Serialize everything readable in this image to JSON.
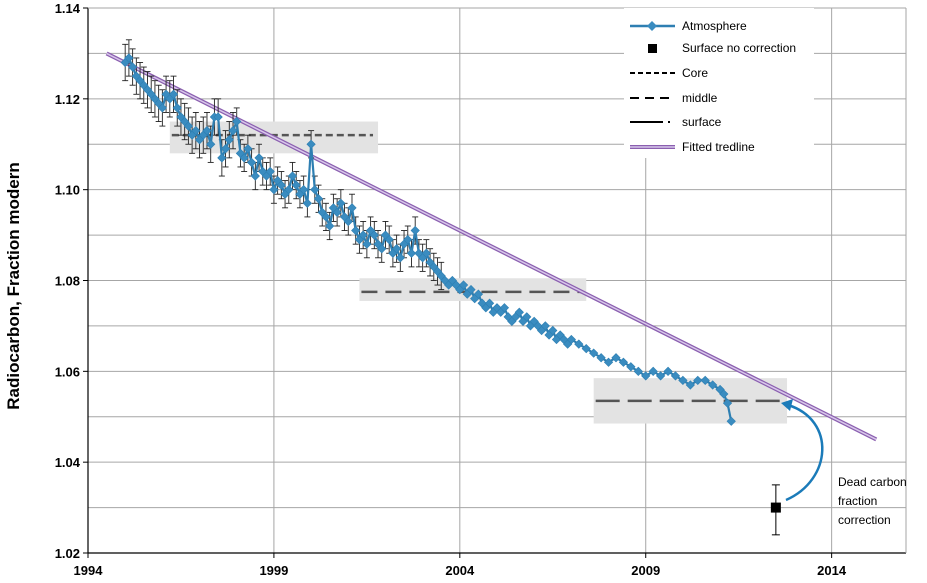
{
  "chart_data": {
    "type": "line",
    "title": "",
    "xlabel": "",
    "ylabel": "Radiocarbon, Fraction modern",
    "xlim": [
      1994,
      2016
    ],
    "ylim": [
      1.02,
      1.14
    ],
    "x_ticks": [
      "1994",
      "1999",
      "2004",
      "2009",
      "2014"
    ],
    "x_tick_values": [
      1994,
      1999,
      2004,
      2009,
      2014
    ],
    "y_ticks": [
      "1.02",
      "1.04",
      "1.06",
      "1.08",
      "1.10",
      "1.12",
      "1.14"
    ],
    "y_tick_values": [
      1.02,
      1.04,
      1.06,
      1.08,
      1.1,
      1.12,
      1.14
    ],
    "x_grid_values": [
      1994,
      1999,
      2004,
      2009,
      2014
    ],
    "y_grid_values": [
      1.03,
      1.04,
      1.05,
      1.06,
      1.07,
      1.08,
      1.09,
      1.1,
      1.11,
      1.12,
      1.13,
      1.14
    ],
    "grid": true,
    "legend_position": "top-right",
    "legend": [
      "Atmosphere",
      "Surface no correction",
      "Core",
      "middle",
      "surface",
      "Fitted tredline"
    ],
    "colors": {
      "atmosphere": "#2e7fb2",
      "atmosphere_marker": "#3a8cc0",
      "trend_outer": "#8b5fb0",
      "trend_inner": "#d8c8ea",
      "band": "#e3e3e3",
      "dashed": "#555555",
      "arrow": "#1b7bb9",
      "grid": "#a6a6a6"
    },
    "series": [
      {
        "name": "Atmosphere",
        "x": [
          1995.0,
          1995.1,
          1995.2,
          1995.3,
          1995.4,
          1995.5,
          1995.6,
          1995.7,
          1995.8,
          1995.9,
          1996.0,
          1996.1,
          1996.2,
          1996.3,
          1996.4,
          1996.5,
          1996.6,
          1996.7,
          1996.8,
          1996.9,
          1997.0,
          1997.1,
          1997.2,
          1997.3,
          1997.4,
          1997.5,
          1997.6,
          1997.7,
          1997.8,
          1997.9,
          1998.0,
          1998.1,
          1998.2,
          1998.3,
          1998.4,
          1998.5,
          1998.6,
          1998.7,
          1998.8,
          1998.9,
          1999.0,
          1999.1,
          1999.2,
          1999.3,
          1999.4,
          1999.5,
          1999.6,
          1999.7,
          1999.8,
          1999.9,
          2000.0,
          2000.1,
          2000.2,
          2000.3,
          2000.4,
          2000.5,
          2000.6,
          2000.7,
          2000.8,
          2000.9,
          2001.0,
          2001.1,
          2001.2,
          2001.3,
          2001.4,
          2001.5,
          2001.6,
          2001.7,
          2001.8,
          2001.9,
          2002.0,
          2002.1,
          2002.2,
          2002.3,
          2002.4,
          2002.5,
          2002.6,
          2002.7,
          2002.8,
          2002.9,
          2003.0,
          2003.1,
          2003.2,
          2003.3,
          2003.4,
          2003.5,
          2003.6,
          2003.7,
          2003.8,
          2003.9,
          2004.0,
          2004.1,
          2004.2,
          2004.3,
          2004.4,
          2004.5,
          2004.6,
          2004.7,
          2004.8,
          2004.9,
          2005.0,
          2005.1,
          2005.2,
          2005.3,
          2005.4,
          2005.5,
          2005.6,
          2005.7,
          2005.8,
          2005.9,
          2006.0,
          2006.1,
          2006.2,
          2006.3,
          2006.4,
          2006.5,
          2006.6,
          2006.7,
          2006.8,
          2006.9,
          2007.0,
          2007.2,
          2007.4,
          2007.6,
          2007.8,
          2008.0,
          2008.2,
          2008.4,
          2008.6,
          2008.8,
          2009.0,
          2009.2,
          2009.4,
          2009.6,
          2009.8,
          2010.0,
          2010.2,
          2010.4,
          2010.6,
          2010.8,
          2011.0,
          2011.1,
          2011.2,
          2011.3
        ],
        "values": [
          1.128,
          1.129,
          1.127,
          1.125,
          1.124,
          1.123,
          1.122,
          1.121,
          1.12,
          1.119,
          1.118,
          1.121,
          1.12,
          1.121,
          1.118,
          1.116,
          1.115,
          1.114,
          1.112,
          1.113,
          1.111,
          1.112,
          1.113,
          1.11,
          1.116,
          1.116,
          1.107,
          1.109,
          1.111,
          1.113,
          1.115,
          1.108,
          1.107,
          1.109,
          1.106,
          1.103,
          1.107,
          1.104,
          1.103,
          1.104,
          1.1,
          1.102,
          1.101,
          1.099,
          1.1,
          1.103,
          1.101,
          1.099,
          1.1,
          1.097,
          1.11,
          1.1,
          1.098,
          1.095,
          1.094,
          1.092,
          1.096,
          1.095,
          1.097,
          1.094,
          1.093,
          1.096,
          1.091,
          1.089,
          1.09,
          1.088,
          1.091,
          1.09,
          1.088,
          1.087,
          1.09,
          1.089,
          1.086,
          1.087,
          1.085,
          1.088,
          1.089,
          1.086,
          1.091,
          1.086,
          1.085,
          1.086,
          1.084,
          1.083,
          1.082,
          1.081,
          1.08,
          1.079,
          1.08,
          1.079,
          1.078,
          1.079,
          1.077,
          1.078,
          1.076,
          1.077,
          1.075,
          1.074,
          1.075,
          1.073,
          1.074,
          1.073,
          1.074,
          1.072,
          1.071,
          1.072,
          1.073,
          1.071,
          1.072,
          1.07,
          1.071,
          1.07,
          1.069,
          1.07,
          1.068,
          1.069,
          1.067,
          1.068,
          1.067,
          1.066,
          1.067,
          1.066,
          1.065,
          1.064,
          1.063,
          1.062,
          1.063,
          1.062,
          1.061,
          1.06,
          1.059,
          1.06,
          1.059,
          1.06,
          1.059,
          1.058,
          1.057,
          1.058,
          1.058,
          1.057,
          1.056,
          1.055,
          1.053,
          1.049
        ]
      },
      {
        "name": "Fitted tredline",
        "x": [
          1994.5,
          2015.2
        ],
        "values": [
          1.13,
          1.045
        ]
      }
    ],
    "surface_no_correction": {
      "name": "Surface no correction",
      "x": 2012.5,
      "value": 1.03,
      "error_low": 1.024,
      "error_high": 1.035
    },
    "reservoir_levels": [
      {
        "name": "Core",
        "x_start": 1996.2,
        "x_end": 2001.8,
        "value": 1.112,
        "band_low": 1.108,
        "band_high": 1.115
      },
      {
        "name": "middle",
        "x_start": 2001.3,
        "x_end": 2007.4,
        "value": 1.0775,
        "band_low": 1.0755,
        "band_high": 1.0805
      },
      {
        "name": "surface",
        "x_start": 2007.6,
        "x_end": 2012.8,
        "value": 1.0535,
        "band_low": 1.0485,
        "band_high": 1.0585
      }
    ],
    "annotations": [
      {
        "lines": [
          "Dead carbon",
          "fraction",
          "correction"
        ]
      }
    ]
  }
}
